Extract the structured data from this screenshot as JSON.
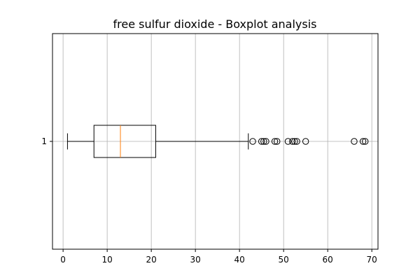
{
  "chart_data": {
    "type": "boxplot",
    "orientation": "horizontal",
    "title": "free sulfur dioxide - Boxplot analysis",
    "xlabel": "",
    "ylabel": "",
    "xlim": [
      -2.4,
      71.4
    ],
    "x_ticks": [
      0,
      10,
      20,
      30,
      40,
      50,
      60,
      70
    ],
    "y_ticks": [
      "1"
    ],
    "grid": true,
    "series": [
      {
        "category": "1",
        "whisker_low": 1,
        "q1": 7,
        "median": 13,
        "q3": 21,
        "whisker_high": 42,
        "outliers": [
          43,
          45,
          45.5,
          46,
          48,
          48.5,
          51,
          52,
          52.5,
          53,
          55,
          66,
          68,
          68.5
        ]
      }
    ]
  },
  "colors": {
    "box": "#000000",
    "median": "#ff7f0e",
    "grid": "#b0b0b0",
    "outlier": "#000000"
  }
}
